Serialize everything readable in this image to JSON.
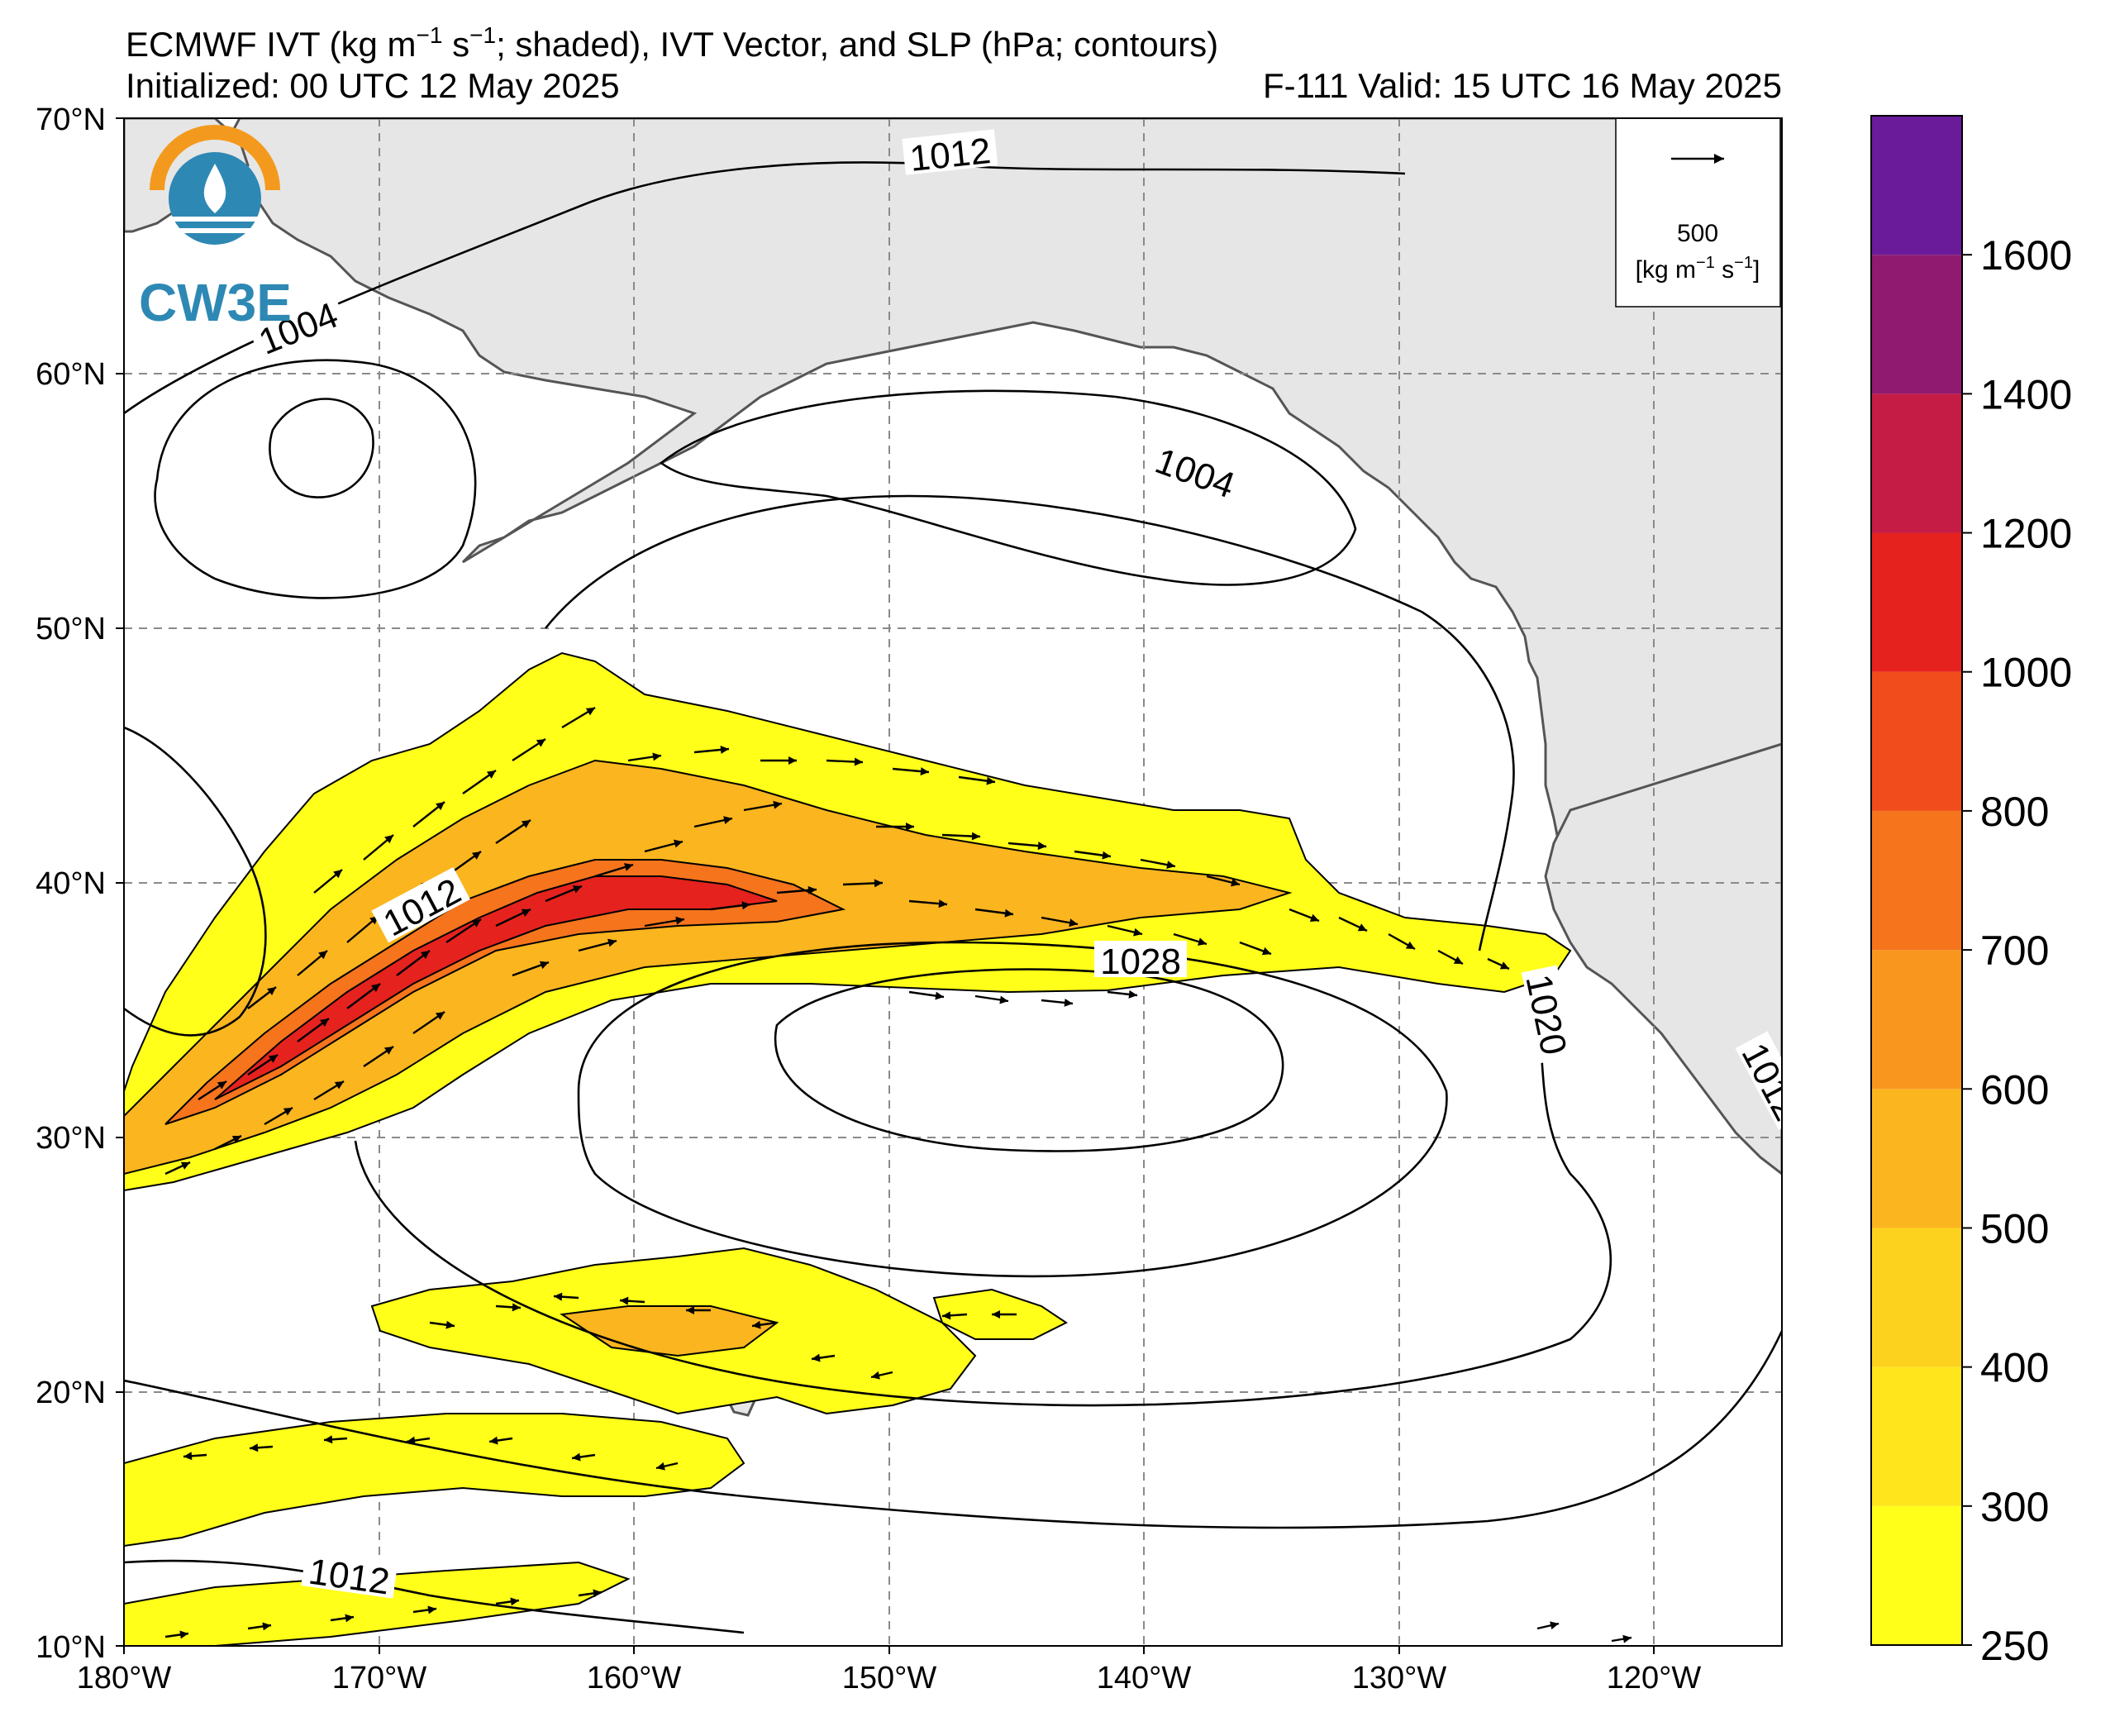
{
  "title": {
    "line1": "ECMWF IVT (kg m",
    "line1_sup1": "−1",
    "line1_mid": " s",
    "line1_sup2": "−1",
    "line1_end": "; shaded), IVT Vector, and SLP (hPa; contours)",
    "initialized": "Initialized: 00 UTC 12 May 2025",
    "valid": "F-111  Valid: 15 UTC 16 May 2025"
  },
  "logo": {
    "text": "CW3E",
    "colors": {
      "sun": "#f39a1e",
      "water": "#2e88b4"
    }
  },
  "reference_vector": {
    "value": "500",
    "units_a": "[kg m",
    "units_sup1": "−1",
    "units_b": " s",
    "units_sup2": "−1",
    "units_c": "]"
  },
  "axes": {
    "lat_labels": [
      "70°N",
      "60°N",
      "50°N",
      "40°N",
      "30°N",
      "20°N",
      "10°N"
    ],
    "lon_labels": [
      "180°W",
      "170°W",
      "160°W",
      "150°W",
      "140°W",
      "130°W",
      "120°W"
    ],
    "lat_range": [
      10,
      70
    ],
    "lon_range": [
      -180,
      -115
    ],
    "grid": true
  },
  "colorbar": {
    "ticks": [
      "250",
      "300",
      "400",
      "500",
      "600",
      "700",
      "800",
      "1000",
      "1200",
      "1400",
      "1600"
    ],
    "colors": [
      "#ffff1a",
      "#ffe61c",
      "#fdd21e",
      "#fbb51f",
      "#f8961e",
      "#f5741c",
      "#f04c1c",
      "#e5221e",
      "#c41c45",
      "#8f1a6f",
      "#6a1b9a"
    ]
  },
  "contour_labels": [
    {
      "text": "1012"
    },
    {
      "text": "1004"
    },
    {
      "text": "1004"
    },
    {
      "text": "1012"
    },
    {
      "text": "1028"
    },
    {
      "text": "1020"
    },
    {
      "text": "1012"
    },
    {
      "text": "1012"
    }
  ]
}
